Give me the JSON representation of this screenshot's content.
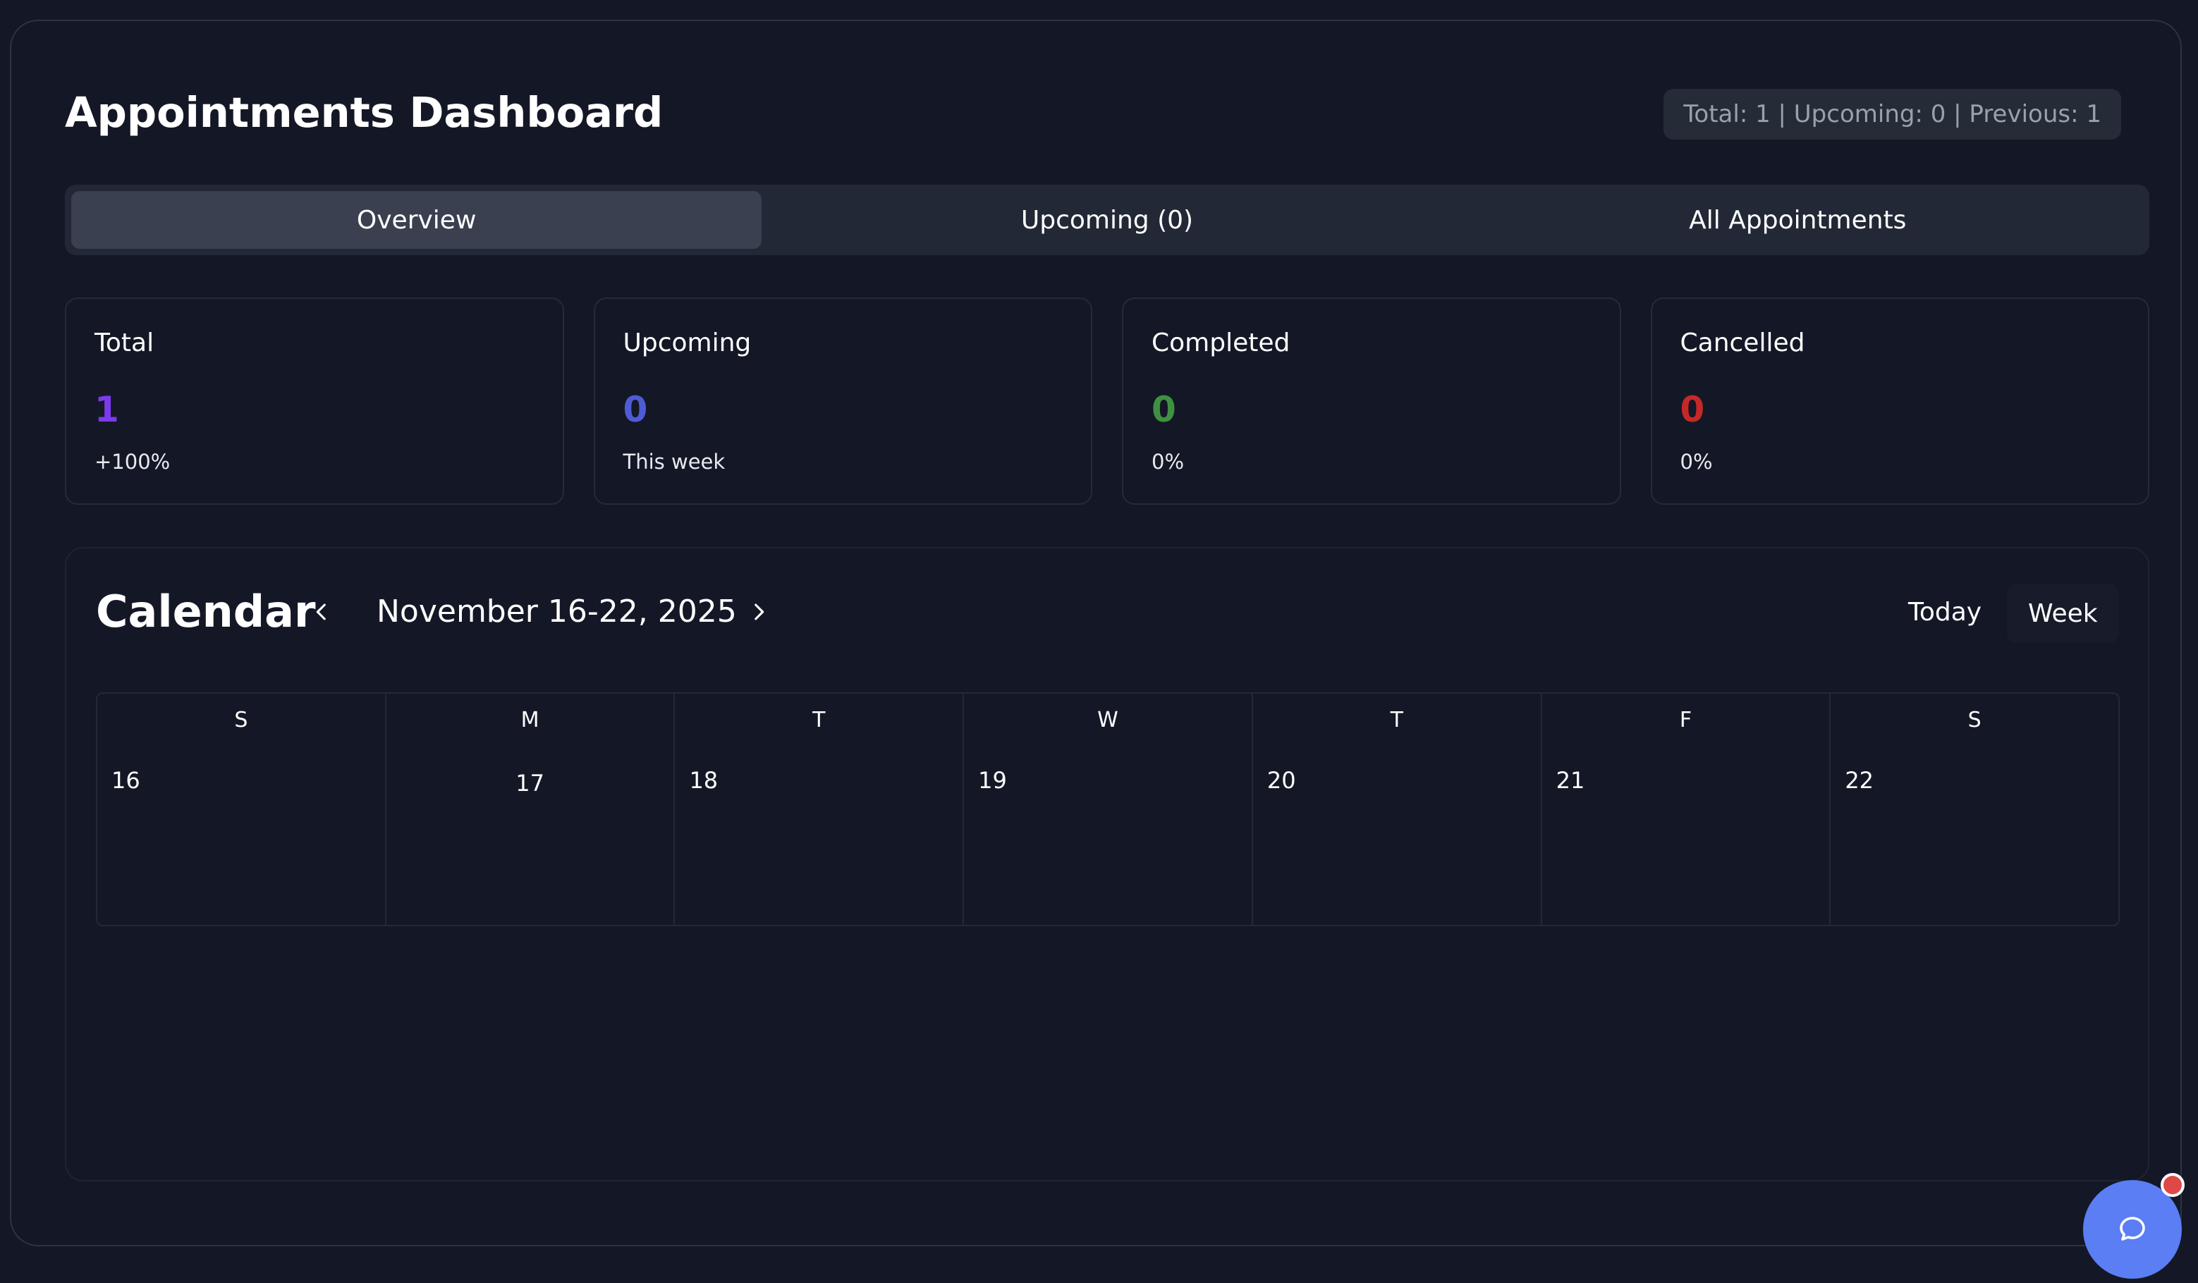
{
  "header": {
    "title": "Appointments Dashboard",
    "summary": "Total: 1 | Upcoming: 0 | Previous: 1"
  },
  "tabs": [
    {
      "label": "Overview",
      "active": true
    },
    {
      "label": "Upcoming (0)",
      "active": false
    },
    {
      "label": "All Appointments",
      "active": false
    }
  ],
  "stats": [
    {
      "label": "Total",
      "value": "1",
      "sub": "+100%",
      "color": "#7c3aed"
    },
    {
      "label": "Upcoming",
      "value": "0",
      "sub": "This week",
      "color": "#4f5bd5"
    },
    {
      "label": "Completed",
      "value": "0",
      "sub": "0%",
      "color": "#3f9142"
    },
    {
      "label": "Cancelled",
      "value": "0",
      "sub": "0%",
      "color": "#c62828"
    }
  ],
  "calendar": {
    "title": "Calendar",
    "range": "November 16-22, 2025",
    "today_label": "Today",
    "view_label": "Week",
    "days": [
      {
        "letter": "S",
        "num": "16"
      },
      {
        "letter": "M",
        "num": "17"
      },
      {
        "letter": "T",
        "num": "18"
      },
      {
        "letter": "W",
        "num": "19"
      },
      {
        "letter": "T",
        "num": "20"
      },
      {
        "letter": "F",
        "num": "21"
      },
      {
        "letter": "S",
        "num": "22"
      }
    ]
  },
  "chat": {
    "icon": "chat-bubble-icon",
    "badge_color": "#e04848"
  }
}
